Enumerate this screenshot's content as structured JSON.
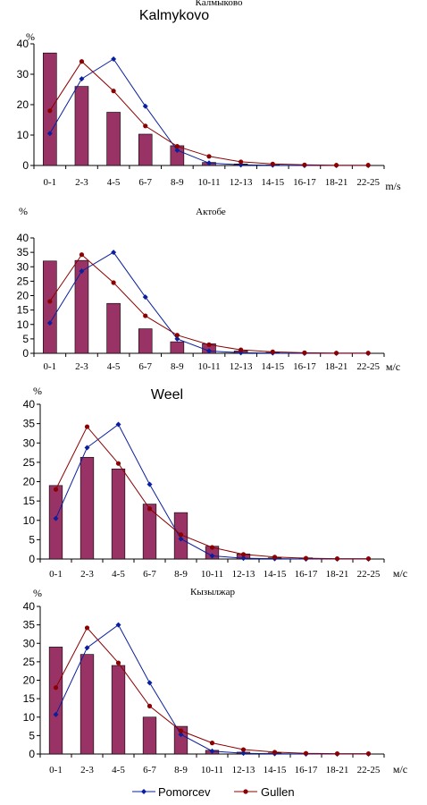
{
  "colors": {
    "bar": "#993366",
    "pomorcev": "#0a1f9e",
    "gullen": "#8b0000",
    "axis": "#000000"
  },
  "legend": {
    "pomorcev": "Pomorcev",
    "gullen": "Gullen"
  },
  "chart_data": [
    {
      "type": "bar",
      "title": "Kalmykovo",
      "cut_off_title": "Калмыково",
      "percent_label": "%",
      "unit_label": "m/s",
      "categories": [
        "0-1",
        "2-3",
        "4-5",
        "6-7",
        "8-9",
        "10-11",
        "12-13",
        "14-15",
        "16-17",
        "18-21",
        "22-25"
      ],
      "ylim": [
        0,
        40
      ],
      "yticks": [
        0,
        10,
        20,
        30,
        40
      ],
      "bars": [
        37,
        26,
        17.5,
        10.3,
        6.5,
        1,
        0.5,
        0.2,
        0,
        0,
        0
      ],
      "series": [
        {
          "name": "Pomorcev",
          "values": [
            10.5,
            28.5,
            35,
            19.5,
            5,
            0.8,
            0.2,
            0.1,
            0,
            0,
            0
          ]
        },
        {
          "name": "Gullen",
          "values": [
            18,
            34.2,
            24.5,
            13,
            6.3,
            3,
            1.2,
            0.5,
            0.2,
            0.1,
            0.1
          ]
        }
      ]
    },
    {
      "type": "bar",
      "title": "Актобе",
      "cut_off_title": "",
      "percent_label": "%",
      "unit_label": "м/с",
      "categories": [
        "0-1",
        "2-3",
        "4-5",
        "6-7",
        "8-9",
        "10-11",
        "12-13",
        "14-15",
        "16-17",
        "18-21",
        "22-25"
      ],
      "ylim": [
        0,
        40
      ],
      "yticks": [
        0,
        5,
        10,
        15,
        20,
        25,
        30,
        35,
        40
      ],
      "bars": [
        32,
        32.2,
        17.3,
        8.5,
        4,
        3.3,
        0.8,
        0.3,
        0,
        0,
        0
      ],
      "series": [
        {
          "name": "Pomorcev",
          "values": [
            10.5,
            28.5,
            35,
            19.5,
            5,
            0.8,
            0.2,
            0.1,
            0,
            0,
            0
          ]
        },
        {
          "name": "Gullen",
          "values": [
            18,
            34.2,
            24.5,
            13,
            6.3,
            3,
            1.2,
            0.5,
            0.2,
            0.1,
            0.1
          ]
        }
      ]
    },
    {
      "type": "bar",
      "title": "Weel",
      "cut_off_title": "",
      "percent_label": "%",
      "unit_label": "м/с",
      "categories": [
        "0-1",
        "2-3",
        "4-5",
        "6-7",
        "8-9",
        "10-11",
        "12-13",
        "14-15",
        "16-17",
        "18-21",
        "22-25"
      ],
      "ylim": [
        0,
        40
      ],
      "yticks": [
        0,
        5,
        10,
        15,
        20,
        25,
        30,
        35,
        40
      ],
      "bars": [
        19,
        26.3,
        23.3,
        14.2,
        12,
        3.3,
        1.3,
        0.3,
        0.3,
        0,
        0
      ],
      "series": [
        {
          "name": "Pomorcev",
          "values": [
            10.5,
            28.8,
            34.8,
            19.3,
            5.2,
            0.8,
            0.2,
            0.1,
            0,
            0,
            0
          ]
        },
        {
          "name": "Gullen",
          "values": [
            18,
            34.2,
            24.7,
            13,
            6.3,
            3,
            1.2,
            0.5,
            0.2,
            0.1,
            0.1
          ]
        }
      ]
    },
    {
      "type": "bar",
      "title": "Кызылжар",
      "cut_off_title": "",
      "percent_label": "%",
      "unit_label": "м/с",
      "categories": [
        "0-1",
        "2-3",
        "4-5",
        "6-7",
        "8-9",
        "10-11",
        "12-13",
        "14-15",
        "16-17",
        "18-21",
        "22-25"
      ],
      "ylim": [
        0,
        40
      ],
      "yticks": [
        0,
        5,
        10,
        15,
        20,
        25,
        30,
        35,
        40
      ],
      "bars": [
        29,
        27,
        24,
        10,
        7.5,
        1,
        0.5,
        0.3,
        0,
        0,
        0
      ],
      "series": [
        {
          "name": "Pomorcev",
          "values": [
            10.7,
            28.8,
            35,
            19.3,
            5.3,
            0.8,
            0.2,
            0.1,
            0,
            0,
            0
          ]
        },
        {
          "name": "Gullen",
          "values": [
            18,
            34.2,
            24.7,
            13,
            6.3,
            3,
            1.2,
            0.5,
            0.2,
            0.1,
            0.1
          ]
        }
      ]
    }
  ]
}
